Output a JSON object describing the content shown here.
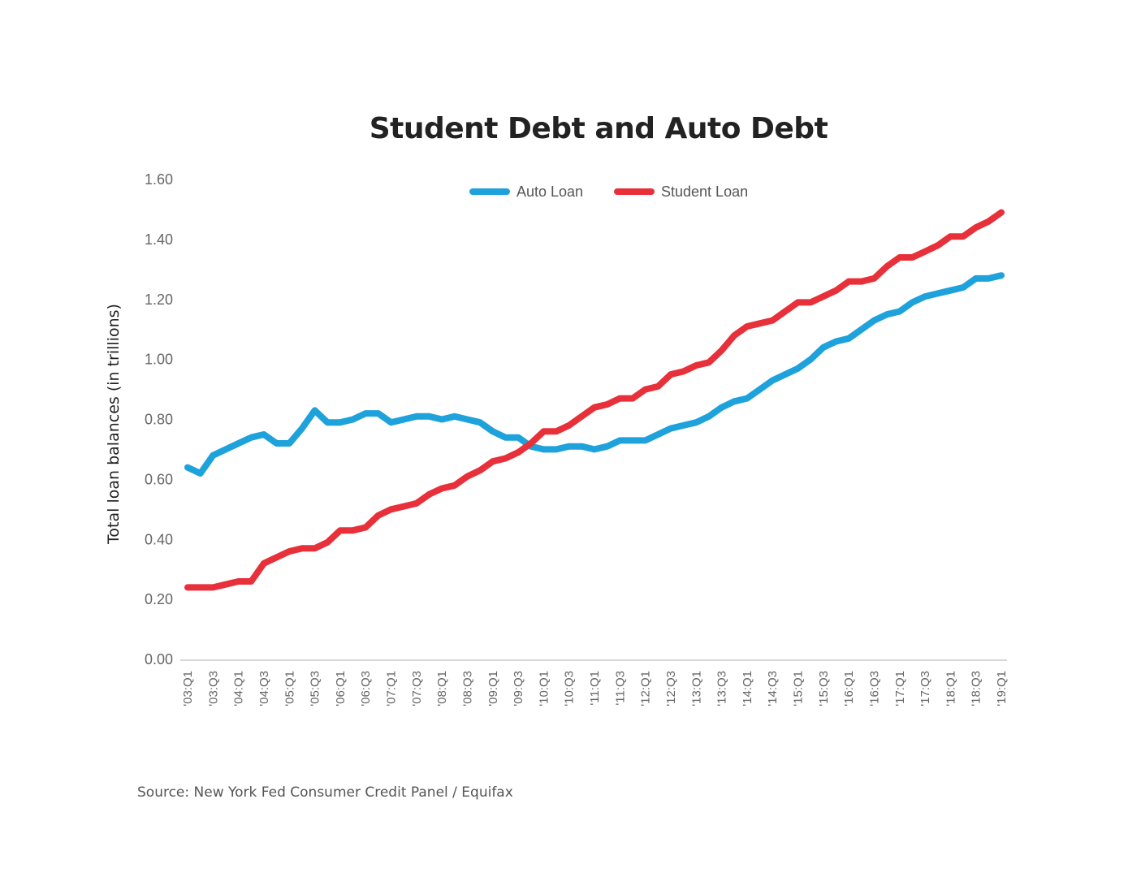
{
  "chart_data": {
    "type": "line",
    "title": "Student Debt and Auto Debt",
    "xlabel": "",
    "ylabel": "Total loan balances (in trillions)",
    "ylim": [
      0,
      1.6
    ],
    "yticks": [
      "0.00",
      "0.20",
      "0.40",
      "0.60",
      "0.80",
      "1.00",
      "1.20",
      "1.40",
      "1.60"
    ],
    "x_tick_labels": [
      "'03:Q1",
      "'03:Q3",
      "'04:Q1",
      "'04:Q3",
      "'05:Q1",
      "'05:Q3",
      "'06:Q1",
      "'06:Q3",
      "'07:Q1",
      "'07:Q3",
      "'08:Q1",
      "'08:Q3",
      "'09:Q1",
      "'09:Q3",
      "'10:Q1",
      "'10:Q3",
      "'11:Q1",
      "'11:Q3",
      "'12:Q1",
      "'12:Q3",
      "'13:Q1",
      "'13:Q3",
      "'14:Q1",
      "'14:Q3",
      "'15:Q1",
      "'15:Q3",
      "'16:Q1",
      "'16:Q3",
      "'17:Q1",
      "'17:Q3",
      "'18:Q1",
      "'18:Q3",
      "'19:Q1"
    ],
    "x": [
      "'03:Q1",
      "'03:Q2",
      "'03:Q3",
      "'03:Q4",
      "'04:Q1",
      "'04:Q2",
      "'04:Q3",
      "'04:Q4",
      "'05:Q1",
      "'05:Q2",
      "'05:Q3",
      "'05:Q4",
      "'06:Q1",
      "'06:Q2",
      "'06:Q3",
      "'06:Q4",
      "'07:Q1",
      "'07:Q2",
      "'07:Q3",
      "'07:Q4",
      "'08:Q1",
      "'08:Q2",
      "'08:Q3",
      "'08:Q4",
      "'09:Q1",
      "'09:Q2",
      "'09:Q3",
      "'09:Q4",
      "'10:Q1",
      "'10:Q2",
      "'10:Q3",
      "'10:Q4",
      "'11:Q1",
      "'11:Q2",
      "'11:Q3",
      "'11:Q4",
      "'12:Q1",
      "'12:Q2",
      "'12:Q3",
      "'12:Q4",
      "'13:Q1",
      "'13:Q2",
      "'13:Q3",
      "'13:Q4",
      "'14:Q1",
      "'14:Q2",
      "'14:Q3",
      "'14:Q4",
      "'15:Q1",
      "'15:Q2",
      "'15:Q3",
      "'15:Q4",
      "'16:Q1",
      "'16:Q2",
      "'16:Q3",
      "'16:Q4",
      "'17:Q1",
      "'17:Q2",
      "'17:Q3",
      "'17:Q4",
      "'18:Q1",
      "'18:Q2",
      "'18:Q3",
      "'18:Q4",
      "'19:Q1"
    ],
    "series": [
      {
        "name": "Auto Loan",
        "color": "#1ea2dc",
        "values": [
          0.64,
          0.62,
          0.68,
          0.7,
          0.72,
          0.74,
          0.75,
          0.72,
          0.72,
          0.77,
          0.83,
          0.79,
          0.79,
          0.8,
          0.82,
          0.82,
          0.79,
          0.8,
          0.81,
          0.81,
          0.8,
          0.81,
          0.8,
          0.79,
          0.76,
          0.74,
          0.74,
          0.71,
          0.7,
          0.7,
          0.71,
          0.71,
          0.7,
          0.71,
          0.73,
          0.73,
          0.73,
          0.75,
          0.77,
          0.78,
          0.79,
          0.81,
          0.84,
          0.86,
          0.87,
          0.9,
          0.93,
          0.95,
          0.97,
          1.0,
          1.04,
          1.06,
          1.07,
          1.1,
          1.13,
          1.15,
          1.16,
          1.19,
          1.21,
          1.22,
          1.23,
          1.24,
          1.27,
          1.27,
          1.28
        ]
      },
      {
        "name": "Student Loan",
        "color": "#e8303a",
        "values": [
          0.24,
          0.24,
          0.24,
          0.25,
          0.26,
          0.26,
          0.32,
          0.34,
          0.36,
          0.37,
          0.37,
          0.39,
          0.43,
          0.43,
          0.44,
          0.48,
          0.5,
          0.51,
          0.52,
          0.55,
          0.57,
          0.58,
          0.61,
          0.63,
          0.66,
          0.67,
          0.69,
          0.72,
          0.76,
          0.76,
          0.78,
          0.81,
          0.84,
          0.85,
          0.87,
          0.87,
          0.9,
          0.91,
          0.95,
          0.96,
          0.98,
          0.99,
          1.03,
          1.08,
          1.11,
          1.12,
          1.13,
          1.16,
          1.19,
          1.19,
          1.21,
          1.23,
          1.26,
          1.26,
          1.27,
          1.31,
          1.34,
          1.34,
          1.36,
          1.38,
          1.41,
          1.41,
          1.44,
          1.46,
          1.49
        ]
      }
    ],
    "legend_position": "top-center",
    "grid": false
  },
  "source": "Source: New York Fed Consumer Credit Panel / Equifax"
}
